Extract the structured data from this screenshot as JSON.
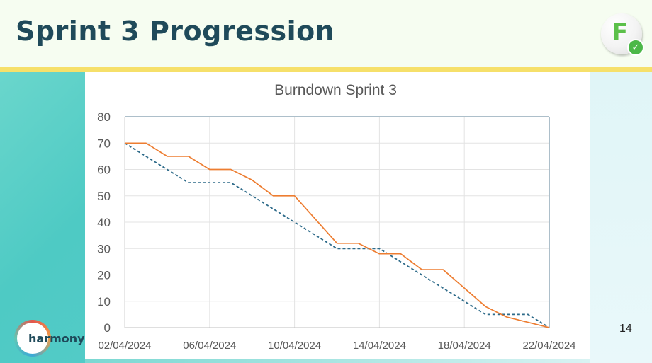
{
  "slide": {
    "title": "Sprint 3 Progression",
    "page_number": "14",
    "logo_letter": "F",
    "brand_name": "harmony"
  },
  "colors": {
    "title": "#1f4a5a",
    "yellow_bar": "#f6e06a",
    "left_band": "#4ecac4",
    "ideal_line": "#2e6b8a",
    "actual_line": "#ed7d31"
  },
  "chart_data": {
    "type": "line",
    "title": "Burndown Sprint 3",
    "xlabel": "",
    "ylabel": "",
    "ylim": [
      0,
      80
    ],
    "yticks": [
      0,
      10,
      20,
      30,
      40,
      50,
      60,
      70,
      80
    ],
    "xlim": [
      "02/04/2024",
      "22/04/2024"
    ],
    "xticks": [
      "02/04/2024",
      "06/04/2024",
      "10/04/2024",
      "14/04/2024",
      "18/04/2024",
      "22/04/2024"
    ],
    "grid": true,
    "legend": "none",
    "series": [
      {
        "style": "dashed",
        "color": "#2e6b8a",
        "points": [
          {
            "x": "02/04/2024",
            "y": 70
          },
          {
            "x": "05/04/2024",
            "y": 55
          },
          {
            "x": "07/04/2024",
            "y": 55
          },
          {
            "x": "12/04/2024",
            "y": 30
          },
          {
            "x": "14/04/2024",
            "y": 30
          },
          {
            "x": "19/04/2024",
            "y": 5
          },
          {
            "x": "21/04/2024",
            "y": 5
          },
          {
            "x": "22/04/2024",
            "y": 0
          }
        ]
      },
      {
        "style": "solid",
        "color": "#ed7d31",
        "points": [
          {
            "x": "02/04/2024",
            "y": 70
          },
          {
            "x": "03/04/2024",
            "y": 70
          },
          {
            "x": "04/04/2024",
            "y": 65
          },
          {
            "x": "05/04/2024",
            "y": 65
          },
          {
            "x": "06/04/2024",
            "y": 60
          },
          {
            "x": "07/04/2024",
            "y": 60
          },
          {
            "x": "08/04/2024",
            "y": 56
          },
          {
            "x": "09/04/2024",
            "y": 50
          },
          {
            "x": "10/04/2024",
            "y": 50
          },
          {
            "x": "12/04/2024",
            "y": 32
          },
          {
            "x": "13/04/2024",
            "y": 32
          },
          {
            "x": "14/04/2024",
            "y": 28
          },
          {
            "x": "15/04/2024",
            "y": 28
          },
          {
            "x": "16/04/2024",
            "y": 22
          },
          {
            "x": "17/04/2024",
            "y": 22
          },
          {
            "x": "19/04/2024",
            "y": 8
          },
          {
            "x": "20/04/2024",
            "y": 4
          },
          {
            "x": "22/04/2024",
            "y": 0
          }
        ]
      }
    ]
  }
}
